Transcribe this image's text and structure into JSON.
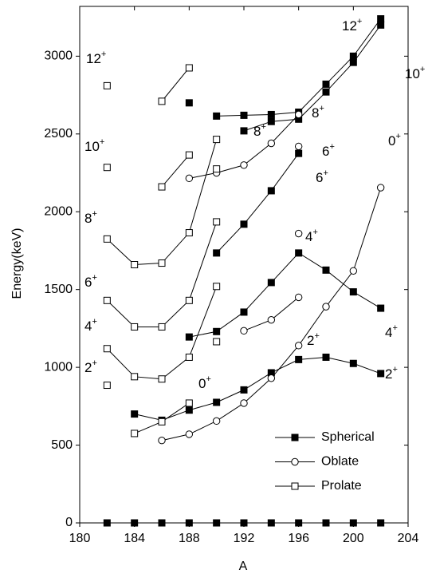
{
  "chart_data": {
    "type": "line",
    "x_label": "A",
    "y_label": "Energy(keV)",
    "xlim": [
      180,
      204
    ],
    "xticks": [
      180,
      184,
      188,
      192,
      196,
      200,
      204
    ],
    "ylim": [
      0,
      3320
    ],
    "yticks": [
      0,
      500,
      1000,
      1500,
      2000,
      2500,
      3000
    ],
    "series": [
      {
        "name": "Spherical",
        "color": "#000000",
        "marker": "filled-square",
        "lines": [
          {
            "x": [
              182,
              184,
              186,
              188,
              190,
              192,
              194,
              196,
              198,
              200,
              202
            ],
            "values": [
              0,
              0,
              0,
              0,
              0,
              0,
              0,
              0,
              0,
              0,
              0
            ],
            "connected": false
          },
          {
            "x": [
              184,
              186,
              188,
              190,
              192,
              194,
              196,
              198,
              200,
              202
            ],
            "values": [
              700,
              660,
              725,
              775,
              855,
              965,
              1050,
              1065,
              1025,
              960
            ],
            "connected": true
          },
          {
            "x": [
              188,
              190,
              192,
              194,
              196,
              198,
              200,
              202
            ],
            "values": [
              1195,
              1230,
              1355,
              1545,
              1735,
              1625,
              1485,
              1380
            ],
            "connected": true
          },
          {
            "x": [
              190,
              192,
              194,
              196
            ],
            "values": [
              1735,
              1920,
              2135,
              2375
            ],
            "connected": true
          },
          {
            "x": [
              188
            ],
            "values": [
              2700
            ],
            "connected": false
          },
          {
            "x": [
              190,
              192,
              194,
              196,
              198,
              200,
              202
            ],
            "values": [
              2615,
              2620,
              2625,
              2640,
              2820,
              3000,
              3240
            ],
            "connected": true
          },
          {
            "x": [
              192,
              194,
              196,
              198,
              200,
              202
            ],
            "values": [
              2520,
              2580,
              2595,
              2770,
              2960,
              3200
            ],
            "connected": true
          }
        ]
      },
      {
        "name": "Oblate",
        "color": "#000000",
        "marker": "open-circle",
        "lines": [
          {
            "x": [
              186,
              188,
              190,
              192,
              194,
              196,
              198,
              200,
              202
            ],
            "values": [
              530,
              570,
              655,
              770,
              930,
              1140,
              1390,
              1620,
              2155
            ],
            "connected": true
          },
          {
            "x": [
              192,
              194,
              196
            ],
            "values": [
              1235,
              1305,
              1450
            ],
            "connected": true
          },
          {
            "x": [
              196
            ],
            "values": [
              1860
            ],
            "connected": false
          },
          {
            "x": [
              196
            ],
            "values": [
              2420
            ],
            "connected": false
          },
          {
            "x": [
              188,
              190,
              192,
              194,
              196
            ],
            "values": [
              2215,
              2250,
              2300,
              2440,
              2625
            ],
            "connected": true
          }
        ]
      },
      {
        "name": "Prolate",
        "color": "#000000",
        "marker": "open-square",
        "lines": [
          {
            "x": [
              184,
              186,
              188
            ],
            "values": [
              575,
              650,
              770
            ],
            "connected": true
          },
          {
            "x": [
              190
            ],
            "values": [
              1165
            ],
            "connected": false
          },
          {
            "x": [
              182
            ],
            "values": [
              885
            ],
            "connected": false
          },
          {
            "x": [
              182,
              184,
              186,
              188,
              190
            ],
            "values": [
              1120,
              940,
              925,
              1065,
              1520
            ],
            "connected": true
          },
          {
            "x": [
              182,
              184,
              186,
              188,
              190
            ],
            "values": [
              1430,
              1260,
              1260,
              1430,
              1935
            ],
            "connected": true
          },
          {
            "x": [
              182,
              184,
              186,
              188,
              190
            ],
            "values": [
              1825,
              1660,
              1670,
              1865,
              2465
            ],
            "connected": true
          },
          {
            "x": [
              190
            ],
            "values": [
              2275
            ],
            "connected": false
          },
          {
            "x": [
              182
            ],
            "values": [
              2285
            ],
            "connected": false
          },
          {
            "x": [
              186,
              188
            ],
            "values": [
              2160,
              2365
            ],
            "connected": true
          },
          {
            "x": [
              182
            ],
            "values": [
              2810
            ],
            "connected": false
          },
          {
            "x": [
              186,
              188
            ],
            "values": [
              2710,
              2925
            ],
            "connected": true
          }
        ]
      }
    ],
    "annotations": [
      {
        "text": "12",
        "sup": "+"
      },
      {
        "text": "10",
        "sup": "+"
      },
      {
        "text": "8",
        "sup": "+"
      },
      {
        "text": "6",
        "sup": "+"
      },
      {
        "text": "4",
        "sup": "+"
      },
      {
        "text": "2",
        "sup": "+"
      },
      {
        "text": "0",
        "sup": "+"
      },
      {
        "text": "2",
        "sup": "+"
      },
      {
        "text": "4",
        "sup": "+"
      },
      {
        "text": "6",
        "sup": "+"
      },
      {
        "text": "6",
        "sup": "+"
      },
      {
        "text": "8",
        "sup": "+"
      },
      {
        "text": "8",
        "sup": "+"
      },
      {
        "text": "12",
        "sup": "+"
      },
      {
        "text": "10",
        "sup": "+"
      },
      {
        "text": "0",
        "sup": "+"
      },
      {
        "text": "4",
        "sup": "+"
      },
      {
        "text": "2",
        "sup": "+"
      }
    ]
  }
}
